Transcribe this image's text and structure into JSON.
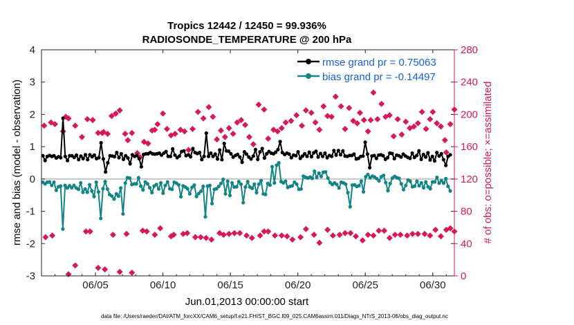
{
  "chart_data": {
    "type": "line",
    "title_line1": "Tropics 12442 / 12450 = 99.936%",
    "title_line2": "RADIOSONDE_TEMPERATURE @ 200 hPa",
    "xlabel": "Jun.01,2013 00:00:00 start",
    "ylabel_left": "rmse and bias (model - observation)",
    "ylabel_right": "# of obs: o=possible; ×=assimilated",
    "ylim_left": [
      -3,
      4
    ],
    "ylim_right": [
      0,
      280
    ],
    "xlim": [
      1,
      31.6
    ],
    "yticks_left": [
      "-3",
      "-2",
      "-1",
      "0",
      "1",
      "2",
      "3",
      "4"
    ],
    "yticks_right": [
      "0",
      "40",
      "80",
      "120",
      "160",
      "200",
      "240",
      "280"
    ],
    "xticks": [
      {
        "x": 5,
        "label": "06/05"
      },
      {
        "x": 10,
        "label": "06/10"
      },
      {
        "x": 15,
        "label": "06/15"
      },
      {
        "x": 20,
        "label": "06/20"
      },
      {
        "x": 25,
        "label": "06/25"
      },
      {
        "x": 30,
        "label": "06/30"
      }
    ],
    "footer": "data file: /Users/raeder/DAI/ATM_forcXX/CAM6_setup/f.e21.FHIST_BGC.f09_025.CAM6assim.011/Diags_NTrS_2013-06/obs_diag_output.nc",
    "colors": {
      "rmse": "#000000",
      "bias": "#138484",
      "obs": "#d6195b",
      "legend_text": "#1560d8"
    },
    "series": [
      {
        "name": "rmse grand pr = 0.75063",
        "values": [
          0.72,
          0.57,
          0.7,
          0.73,
          0.7,
          0.72,
          0.65,
          0.69,
          0.66,
          1.88,
          0.7,
          0.57,
          0.72,
          0.72,
          0.67,
          0.74,
          0.6,
          0.71,
          0.63,
          0.75,
          0.6,
          0.75,
          0.69,
          0.74,
          0.63,
          0.66,
          1.12,
          0.62,
          0.22,
          0.5,
          0.72,
          0.71,
          0.69,
          0.82,
          0.66,
          0.78,
          0.61,
          0.72,
          0.65,
          0.47,
          0.75,
          0.7,
          0.73,
          0.63,
          0.38,
          0.76,
          0.78,
          0.78,
          0.82,
          0.78,
          0.77,
          0.78,
          0.8,
          0.74,
          0.8,
          0.85,
          0.7,
          0.7,
          0.93,
          0.74,
          0.66,
          0.71,
          0.85,
          0.87,
          0.72,
          0.75,
          0.69,
          0.94,
          0.82,
          0.79,
          0.82,
          0.6,
          0.7,
          1.42,
          0.7,
          0.8,
          0.7,
          0.77,
          0.62,
          0.9,
          0.6,
          1.1,
          0.87,
          0.86,
          0.78,
          0.68,
          0.73,
          0.76,
          0.68,
          0.52,
          0.84,
          0.77,
          0.68,
          0.62,
          0.71,
          0.91,
          0.61,
          0.84,
          0.94,
          0.65,
          0.78,
          0.85,
          0.8,
          0.78,
          0.83,
          0.91,
          1.16,
          0.82,
          0.76,
          0.8,
          0.77,
          0.66,
          0.74,
          0.72,
          0.84,
          0.64,
          0.71,
          0.78,
          0.7,
          0.83,
          0.69,
          0.81,
          0.86,
          0.68,
          0.79,
          0.7,
          0.8,
          0.66,
          0.73,
          0.7,
          0.88,
          0.74,
          0.88,
          0.75,
          0.87,
          0.71,
          0.7,
          0.73,
          0.73,
          0.77,
          0.62,
          0.64,
          0.7,
          0.71,
          1.14,
          0.77,
          0.35,
          0.71,
          0.73,
          0.64,
          0.74,
          0.75,
          0.72,
          0.61,
          0.66,
          0.8,
          0.79,
          0.63,
          0.74,
          0.72,
          0.68,
          0.77,
          0.71,
          0.67,
          0.64,
          0.8,
          0.67,
          0.73,
          0.87,
          0.61,
          0.76,
          0.68,
          0.81,
          0.59,
          0.7,
          0.56,
          0.82,
          0.71,
          0.78,
          0.6,
          0.42,
          0.7,
          0.75
        ]
      },
      {
        "name": "bias grand pr = -0.14497",
        "values": [
          -0.1,
          -0.15,
          -0.1,
          -0.09,
          -0.2,
          -0.1,
          -0.35,
          -0.24,
          -0.22,
          -1.55,
          -0.2,
          -0.28,
          -0.21,
          -0.27,
          -0.2,
          -0.28,
          -0.32,
          -0.12,
          -0.41,
          -0.31,
          -0.41,
          -0.18,
          -0.37,
          -0.54,
          -0.1,
          -0.4,
          -1.22,
          -0.3,
          -0.08,
          -0.31,
          -0.48,
          -0.53,
          -0.62,
          -0.46,
          -0.53,
          -0.28,
          -1.08,
          -0.13,
          0.04,
          0.03,
          -0.17,
          -0.15,
          -0.15,
          0.04,
          -0.22,
          -0.34,
          -0.09,
          -0.15,
          -0.27,
          -0.42,
          -0.22,
          -0.17,
          -0.31,
          -0.12,
          -0.44,
          -0.2,
          -0.09,
          -0.3,
          -0.32,
          -0.1,
          -0.13,
          -0.18,
          -0.55,
          -0.21,
          -0.25,
          -0.3,
          -0.46,
          -0.26,
          -0.19,
          -0.54,
          -0.45,
          -0.38,
          -0.23,
          -1.17,
          -0.22,
          -0.2,
          -0.76,
          -0.32,
          -0.3,
          -0.23,
          -0.14,
          -0.01,
          -0.46,
          -0.07,
          -0.51,
          -0.12,
          -0.25,
          -0.24,
          -0.08,
          -0.16,
          -0.73,
          -0.25,
          -0.08,
          -0.25,
          -0.29,
          -0.16,
          -0.42,
          -0.16,
          -0.05,
          -0.46,
          -0.48,
          -0.14,
          -0.19,
          0.38,
          -0.12,
          0.43,
          0.5,
          -0.08,
          -0.12,
          -0.07,
          -0.26,
          -0.23,
          -0.21,
          -0.1,
          -0.16,
          -0.32,
          -0.31,
          0.09,
          0.05,
          0.03,
          0.06,
          0.02,
          0.24,
          0.05,
          0.18,
          0.08,
          0.21,
          0.22,
          0.03,
          -0.11,
          -0.17,
          -0.12,
          -0.17,
          -0.28,
          -0.1,
          -0.12,
          -0.16,
          -0.42,
          -0.86,
          -0.19,
          -0.18,
          -0.23,
          -0.21,
          -0.07,
          -0.4,
          0.07,
          0.14,
          0.04,
          0.09,
          0.06,
          0.01,
          -0.06,
          0.07,
          0.11,
          -0.11,
          -0.36,
          -0.14,
          0.03,
          0.08,
          0.04,
          0.02,
          -0.15,
          -0.33,
          -0.2,
          -0.03,
          -0.07,
          -0.24,
          -0.22,
          -0.07,
          -0.21,
          -0.12,
          -0.27,
          -0.09,
          -0.24,
          -0.3,
          -0.09,
          -0.09,
          0.05,
          -0.13,
          -0.05,
          -0.13,
          0.01,
          -0.23,
          -0.37
        ]
      }
    ],
    "obs_possible": [
      48,
      50,
      2,
      13,
      55,
      55,
      10,
      8,
      51,
      5,
      52,
      4,
      56,
      55,
      51,
      59,
      49,
      51,
      52,
      53,
      48,
      48,
      47,
      45,
      53,
      51,
      52,
      53,
      53,
      50,
      47,
      50,
      55,
      55,
      50,
      50,
      49,
      45,
      48,
      58,
      51,
      41,
      57,
      50,
      51,
      53,
      53,
      49,
      44,
      51,
      50,
      56,
      56,
      47,
      51,
      51,
      50,
      52,
      52,
      52,
      50,
      57,
      49,
      57,
      59,
      55
    ],
    "obs_possible_days": [
      1.3,
      1.8,
      3.0,
      3.5,
      4.3,
      4.6,
      5.2,
      5.7,
      6.3,
      6.8,
      7.3,
      7.7,
      8.5,
      8.8,
      9.4,
      9.8,
      10.6,
      10.8,
      11.5,
      11.8,
      12.4,
      12.8,
      13.2,
      13.6,
      14.2,
      14.5,
      14.9,
      15.3,
      15.7,
      16.2,
      16.6,
      17.2,
      17.5,
      17.8,
      18.3,
      18.8,
      19.2,
      19.6,
      20.2,
      20.6,
      21.2,
      21.6,
      22.2,
      22.6,
      23.1,
      23.5,
      23.9,
      24.3,
      24.8,
      25.2,
      25.6,
      26.0,
      26.4,
      26.8,
      27.2,
      27.6,
      28.1,
      28.5,
      28.9,
      29.4,
      29.8,
      30.2,
      30.6,
      31.0,
      31.3,
      31.6
    ],
    "obs_assimilated": [
      186,
      190,
      188,
      179,
      197,
      195,
      186,
      172,
      194,
      193,
      177,
      177,
      178,
      176,
      198,
      201,
      205,
      176,
      168,
      177,
      152,
      147,
      166,
      164,
      180,
      181,
      188,
      201,
      182,
      174,
      176,
      181,
      179,
      156,
      182,
      203,
      195,
      209,
      197,
      169,
      180,
      172,
      183,
      176,
      190,
      193,
      187,
      172,
      163,
      212,
      206,
      170,
      181,
      179,
      183,
      190,
      192,
      199,
      186,
      205,
      202,
      190,
      181,
      210,
      198,
      197,
      222,
      210,
      182,
      208,
      192,
      189,
      202,
      193,
      179,
      193,
      227,
      194,
      213,
      197,
      199,
      173,
      194,
      175,
      191,
      183,
      185,
      189,
      203,
      182,
      194,
      203,
      189,
      185,
      168,
      153,
      188,
      206
    ],
    "obs_assimilated_days": [
      1.2,
      1.7,
      2.0,
      2.6,
      2.8,
      3.0,
      3.5,
      4.0,
      4.4,
      4.8,
      5.2,
      5.5,
      5.6,
      5.9,
      6.2,
      6.5,
      6.8,
      7.2,
      7.4,
      7.7,
      8.1,
      8.3,
      8.6,
      8.9,
      9.2,
      9.4,
      9.6,
      10.0,
      10.3,
      10.6,
      10.9,
      11.3,
      11.6,
      11.9,
      12.2,
      12.6,
      13.0,
      13.4,
      13.7,
      14.0,
      14.3,
      14.6,
      14.9,
      15.2,
      15.5,
      15.8,
      16.1,
      16.4,
      16.7,
      17.1,
      17.5,
      17.8,
      18.2,
      18.5,
      18.8,
      19.1,
      19.5,
      19.9,
      20.3,
      20.6,
      21.0,
      21.3,
      21.6,
      21.9,
      22.2,
      22.5,
      22.8,
      23.2,
      23.5,
      23.8,
      24.1,
      24.4,
      24.6,
      24.9,
      25.2,
      25.4,
      25.6,
      25.9,
      26.2,
      26.5,
      26.8,
      27.1,
      27.4,
      27.7,
      28.0,
      28.3,
      28.6,
      28.9,
      29.2,
      29.5,
      29.8,
      30.0,
      30.3,
      30.6,
      30.9,
      31.0,
      31.3,
      31.6
    ]
  }
}
